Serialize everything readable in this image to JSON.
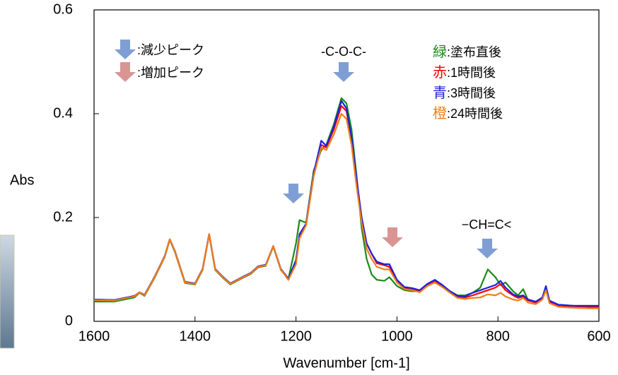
{
  "chart_data": {
    "type": "line",
    "y_label": "Abs",
    "x_label": "Wavenumber [cm-1]",
    "xlim": [
      1600,
      600
    ],
    "ylim": [
      0,
      0.6
    ],
    "xticks": [
      1600,
      1400,
      1200,
      1000,
      800,
      600
    ],
    "yticks": [
      0,
      0.2,
      0.4,
      0.6
    ],
    "x": [
      1600,
      1560,
      1520,
      1510,
      1500,
      1480,
      1460,
      1450,
      1440,
      1420,
      1400,
      1385,
      1372,
      1360,
      1345,
      1330,
      1305,
      1290,
      1275,
      1260,
      1245,
      1230,
      1215,
      1200,
      1193,
      1180,
      1165,
      1150,
      1140,
      1125,
      1110,
      1100,
      1090,
      1080,
      1070,
      1060,
      1050,
      1040,
      1025,
      1015,
      1000,
      985,
      970,
      955,
      940,
      925,
      910,
      895,
      880,
      865,
      850,
      835,
      820,
      805,
      795,
      785,
      770,
      760,
      750,
      740,
      725,
      712,
      705,
      698,
      680,
      650,
      620,
      600
    ],
    "series": [
      {
        "key": "緑",
        "name": ":塗布直後",
        "color": "#1a8a1a",
        "values": [
          0.038,
          0.038,
          0.046,
          0.055,
          0.049,
          0.084,
          0.124,
          0.157,
          0.134,
          0.074,
          0.071,
          0.099,
          0.167,
          0.099,
          0.084,
          0.071,
          0.084,
          0.091,
          0.104,
          0.107,
          0.144,
          0.099,
          0.082,
          0.15,
          0.195,
          0.19,
          0.29,
          0.33,
          0.34,
          0.38,
          0.43,
          0.42,
          0.37,
          0.28,
          0.18,
          0.12,
          0.09,
          0.08,
          0.078,
          0.085,
          0.068,
          0.06,
          0.058,
          0.058,
          0.068,
          0.075,
          0.066,
          0.058,
          0.05,
          0.05,
          0.055,
          0.065,
          0.1,
          0.085,
          0.07,
          0.075,
          0.058,
          0.05,
          0.062,
          0.04,
          0.038,
          0.045,
          0.065,
          0.038,
          0.032,
          0.03,
          0.03,
          0.03
        ]
      },
      {
        "key": "赤",
        "name": ":1時間後",
        "color": "#ff0000",
        "values": [
          0.042,
          0.041,
          0.048,
          0.056,
          0.05,
          0.085,
          0.125,
          0.158,
          0.135,
          0.075,
          0.072,
          0.1,
          0.168,
          0.1,
          0.085,
          0.072,
          0.085,
          0.092,
          0.105,
          0.108,
          0.145,
          0.1,
          0.08,
          0.115,
          0.165,
          0.185,
          0.28,
          0.34,
          0.335,
          0.37,
          0.415,
          0.405,
          0.35,
          0.27,
          0.2,
          0.15,
          0.13,
          0.112,
          0.108,
          0.105,
          0.078,
          0.064,
          0.062,
          0.058,
          0.07,
          0.078,
          0.068,
          0.056,
          0.047,
          0.046,
          0.05,
          0.055,
          0.06,
          0.065,
          0.072,
          0.06,
          0.05,
          0.045,
          0.048,
          0.04,
          0.036,
          0.045,
          0.065,
          0.038,
          0.03,
          0.029,
          0.028,
          0.028
        ]
      },
      {
        "key": "青",
        "name": ":3時間後",
        "color": "#1f1fe0",
        "values": [
          0.042,
          0.041,
          0.049,
          0.056,
          0.051,
          0.086,
          0.126,
          0.158,
          0.136,
          0.076,
          0.073,
          0.101,
          0.168,
          0.101,
          0.086,
          0.073,
          0.086,
          0.093,
          0.106,
          0.109,
          0.145,
          0.101,
          0.082,
          0.118,
          0.168,
          0.188,
          0.285,
          0.348,
          0.338,
          0.375,
          0.425,
          0.41,
          0.355,
          0.275,
          0.2,
          0.15,
          0.13,
          0.115,
          0.11,
          0.11,
          0.08,
          0.066,
          0.064,
          0.06,
          0.072,
          0.08,
          0.07,
          0.058,
          0.049,
          0.048,
          0.055,
          0.06,
          0.065,
          0.07,
          0.078,
          0.065,
          0.052,
          0.048,
          0.05,
          0.042,
          0.038,
          0.046,
          0.068,
          0.04,
          0.032,
          0.03,
          0.03,
          0.03
        ]
      },
      {
        "key": "橙",
        "name": ":24時間後",
        "color": "#f07d1a",
        "values": [
          0.041,
          0.04,
          0.048,
          0.056,
          0.05,
          0.085,
          0.125,
          0.158,
          0.135,
          0.075,
          0.072,
          0.1,
          0.168,
          0.1,
          0.085,
          0.072,
          0.085,
          0.092,
          0.105,
          0.108,
          0.145,
          0.1,
          0.08,
          0.11,
          0.16,
          0.185,
          0.28,
          0.335,
          0.33,
          0.36,
          0.4,
          0.39,
          0.34,
          0.26,
          0.19,
          0.14,
          0.12,
          0.105,
          0.1,
          0.1,
          0.075,
          0.062,
          0.06,
          0.056,
          0.068,
          0.075,
          0.066,
          0.055,
          0.045,
          0.043,
          0.045,
          0.046,
          0.052,
          0.05,
          0.055,
          0.048,
          0.042,
          0.04,
          0.045,
          0.036,
          0.033,
          0.042,
          0.06,
          0.035,
          0.028,
          0.026,
          0.025,
          0.025
        ]
      }
    ],
    "annotations": {
      "decrease": ":減少ピーク",
      "increase": ":増加ピーク",
      "coc": "-C-O-C-",
      "ch": "−CH=C<"
    }
  }
}
